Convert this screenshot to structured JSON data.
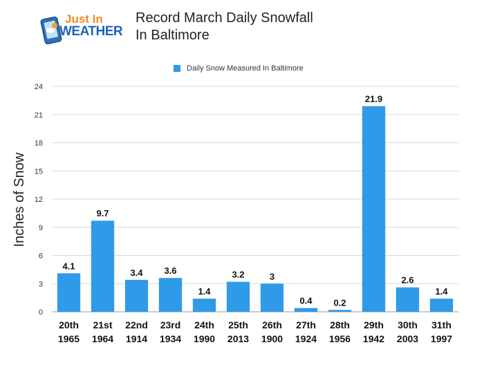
{
  "logo": {
    "line1": "Just In",
    "line2": "WEATHER"
  },
  "chart_data": {
    "type": "bar",
    "title": "Record March Daily Snowfall\nIn Baltimore",
    "categories": [
      "20th\n1965",
      "21st\n1964",
      "22nd\n1914",
      "23rd\n1934",
      "24th\n1990",
      "25th\n2013",
      "26th\n1900",
      "27th\n1924",
      "28th\n1956",
      "29th\n1942",
      "30th\n2003",
      "31th\n1997"
    ],
    "series": [
      {
        "name": "Daily Snow Measured In Baltimore",
        "values": [
          4.1,
          9.7,
          3.4,
          3.6,
          1.4,
          3.2,
          3,
          0.4,
          0.2,
          21.9,
          2.6,
          1.4
        ]
      }
    ],
    "data_labels": [
      "4.1",
      "9.7",
      "3.4",
      "3.6",
      "1.4",
      "3.2",
      "3",
      "0.4",
      "0.2",
      "21.9",
      "2.6",
      "1.4"
    ],
    "ylabel": "Inches of Snow",
    "xlabel": "",
    "ylim": [
      0,
      24
    ],
    "yticks": [
      0,
      3,
      6,
      9,
      12,
      15,
      18,
      21,
      24
    ],
    "grid": true,
    "legend_position": "top-center",
    "bar_color": "#2f9ae8"
  }
}
